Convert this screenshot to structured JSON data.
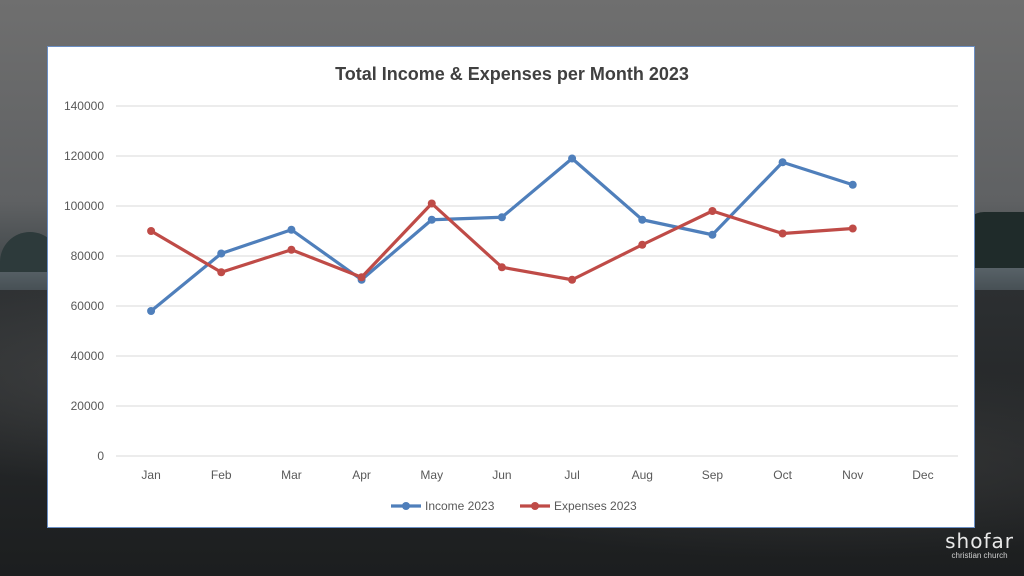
{
  "colors": {
    "income": "#4f7fbb",
    "expenses": "#bf4b47",
    "grid": "#d9d9d9",
    "axis_text": "#595959",
    "title_text": "#404040"
  },
  "logo": {
    "main": "shofar",
    "sub": "christian church"
  },
  "chart_data": {
    "type": "line",
    "title": "Total Income & Expenses per Month 2023",
    "xlabel": "",
    "ylabel": "",
    "categories": [
      "Jan",
      "Feb",
      "Mar",
      "Apr",
      "May",
      "Jun",
      "Jul",
      "Aug",
      "Sep",
      "Oct",
      "Nov",
      "Dec"
    ],
    "ylim": [
      0,
      140000
    ],
    "yticks": [
      "0",
      "20000",
      "40000",
      "60000",
      "80000",
      "100000",
      "120000",
      "140000"
    ],
    "grid": true,
    "legend_position": "bottom",
    "series": [
      {
        "name": "Income 2023",
        "color": "#4f7fbb",
        "values": [
          58000,
          81000,
          90500,
          70500,
          94500,
          95500,
          119000,
          94500,
          88500,
          117500,
          108500,
          null
        ]
      },
      {
        "name": "Expenses 2023",
        "color": "#bf4b47",
        "values": [
          90000,
          73500,
          82500,
          71500,
          101000,
          75500,
          70500,
          84500,
          98000,
          89000,
          91000,
          null
        ]
      }
    ]
  }
}
